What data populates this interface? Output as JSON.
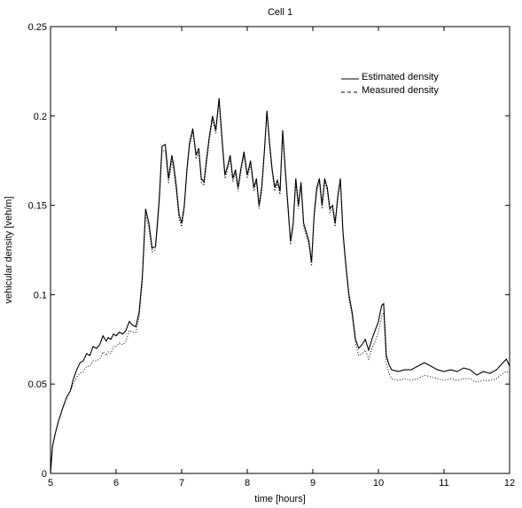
{
  "chart_data": {
    "type": "line",
    "title": "Cell 1",
    "xlabel": "time [hours]",
    "ylabel": "vehicular density [veh/m]",
    "xlim": [
      5,
      12
    ],
    "ylim": [
      0,
      0.25
    ],
    "xticks": [
      "5",
      "6",
      "7",
      "8",
      "9",
      "10",
      "11",
      "12"
    ],
    "yticks": [
      "0",
      "0.05",
      "0.1",
      "0.15",
      "0.2",
      "0.25"
    ],
    "grid": false,
    "legend_position": "top-right",
    "series": [
      {
        "name": "Estimated density",
        "style": "solid",
        "color": "#000000",
        "x": [
          5.0,
          5.03,
          5.07,
          5.12,
          5.18,
          5.25,
          5.3,
          5.35,
          5.4,
          5.45,
          5.5,
          5.55,
          5.6,
          5.65,
          5.7,
          5.75,
          5.8,
          5.85,
          5.88,
          5.92,
          5.96,
          6.0,
          6.05,
          6.1,
          6.15,
          6.2,
          6.25,
          6.3,
          6.35,
          6.4,
          6.45,
          6.5,
          6.55,
          6.6,
          6.63,
          6.66,
          6.7,
          6.75,
          6.8,
          6.85,
          6.88,
          6.92,
          6.96,
          7.0,
          7.04,
          7.08,
          7.12,
          7.17,
          7.22,
          7.26,
          7.3,
          7.34,
          7.38,
          7.42,
          7.47,
          7.52,
          7.57,
          7.62,
          7.66,
          7.7,
          7.74,
          7.78,
          7.82,
          7.86,
          7.9,
          7.95,
          8.0,
          8.05,
          8.1,
          8.14,
          8.18,
          8.22,
          8.26,
          8.3,
          8.34,
          8.38,
          8.42,
          8.46,
          8.5,
          8.54,
          8.58,
          8.62,
          8.66,
          8.7,
          8.74,
          8.78,
          8.82,
          8.86,
          8.9,
          8.94,
          8.98,
          9.02,
          9.06,
          9.1,
          9.14,
          9.18,
          9.22,
          9.26,
          9.3,
          9.34,
          9.38,
          9.42,
          9.46,
          9.5,
          9.55,
          9.6,
          9.65,
          9.7,
          9.75,
          9.8,
          9.85,
          9.9,
          9.95,
          10.0,
          10.05,
          10.08,
          10.12,
          10.16,
          10.2,
          10.3,
          10.4,
          10.5,
          10.6,
          10.7,
          10.8,
          10.9,
          11.0,
          11.1,
          11.2,
          11.3,
          11.4,
          11.5,
          11.6,
          11.7,
          11.8,
          11.9,
          11.95,
          12.0
        ],
        "values": [
          0.0,
          0.015,
          0.022,
          0.029,
          0.036,
          0.043,
          0.046,
          0.053,
          0.058,
          0.062,
          0.063,
          0.067,
          0.066,
          0.071,
          0.07,
          0.072,
          0.077,
          0.074,
          0.076,
          0.075,
          0.078,
          0.077,
          0.079,
          0.078,
          0.08,
          0.085,
          0.083,
          0.082,
          0.09,
          0.11,
          0.148,
          0.14,
          0.126,
          0.127,
          0.14,
          0.155,
          0.183,
          0.184,
          0.165,
          0.178,
          0.172,
          0.16,
          0.145,
          0.14,
          0.15,
          0.17,
          0.185,
          0.193,
          0.178,
          0.182,
          0.165,
          0.163,
          0.176,
          0.188,
          0.2,
          0.192,
          0.21,
          0.185,
          0.167,
          0.172,
          0.178,
          0.165,
          0.17,
          0.16,
          0.17,
          0.18,
          0.167,
          0.175,
          0.16,
          0.165,
          0.15,
          0.16,
          0.18,
          0.203,
          0.185,
          0.17,
          0.16,
          0.164,
          0.158,
          0.192,
          0.17,
          0.15,
          0.13,
          0.14,
          0.165,
          0.15,
          0.163,
          0.14,
          0.135,
          0.13,
          0.118,
          0.145,
          0.16,
          0.165,
          0.15,
          0.165,
          0.16,
          0.148,
          0.15,
          0.14,
          0.155,
          0.165,
          0.135,
          0.118,
          0.1,
          0.09,
          0.075,
          0.07,
          0.072,
          0.075,
          0.069,
          0.075,
          0.08,
          0.085,
          0.094,
          0.095,
          0.066,
          0.061,
          0.058,
          0.057,
          0.058,
          0.058,
          0.06,
          0.062,
          0.06,
          0.058,
          0.057,
          0.058,
          0.057,
          0.059,
          0.058,
          0.055,
          0.057,
          0.056,
          0.058,
          0.062,
          0.064,
          0.06
        ]
      },
      {
        "name": "Measured density",
        "style": "dotted",
        "color": "#000000",
        "x": [
          5.0,
          5.03,
          5.07,
          5.12,
          5.18,
          5.25,
          5.3,
          5.35,
          5.4,
          5.45,
          5.5,
          5.55,
          5.6,
          5.65,
          5.7,
          5.75,
          5.8,
          5.85,
          5.88,
          5.92,
          5.96,
          6.0,
          6.05,
          6.1,
          6.15,
          6.2,
          6.25,
          6.3,
          6.35,
          6.4,
          6.45,
          6.5,
          6.55,
          6.6,
          6.63,
          6.66,
          6.7,
          6.75,
          6.8,
          6.85,
          6.88,
          6.92,
          6.96,
          7.0,
          7.04,
          7.08,
          7.12,
          7.17,
          7.22,
          7.26,
          7.3,
          7.34,
          7.38,
          7.42,
          7.47,
          7.52,
          7.57,
          7.62,
          7.66,
          7.7,
          7.74,
          7.78,
          7.82,
          7.86,
          7.9,
          7.95,
          8.0,
          8.05,
          8.1,
          8.14,
          8.18,
          8.22,
          8.26,
          8.3,
          8.34,
          8.38,
          8.42,
          8.46,
          8.5,
          8.54,
          8.58,
          8.62,
          8.66,
          8.7,
          8.74,
          8.78,
          8.82,
          8.86,
          8.9,
          8.94,
          8.98,
          9.02,
          9.06,
          9.1,
          9.14,
          9.18,
          9.22,
          9.26,
          9.3,
          9.34,
          9.38,
          9.42,
          9.46,
          9.5,
          9.55,
          9.6,
          9.65,
          9.7,
          9.75,
          9.8,
          9.85,
          9.9,
          9.95,
          10.0,
          10.05,
          10.08,
          10.12,
          10.16,
          10.2,
          10.3,
          10.4,
          10.5,
          10.6,
          10.7,
          10.8,
          10.9,
          11.0,
          11.1,
          11.2,
          11.3,
          11.4,
          11.5,
          11.6,
          11.7,
          11.8,
          11.9,
          11.95,
          12.0
        ],
        "values": [
          0.0,
          0.015,
          0.022,
          0.029,
          0.036,
          0.043,
          0.046,
          0.05,
          0.054,
          0.056,
          0.057,
          0.06,
          0.06,
          0.063,
          0.063,
          0.064,
          0.068,
          0.066,
          0.068,
          0.067,
          0.071,
          0.071,
          0.073,
          0.072,
          0.074,
          0.08,
          0.079,
          0.079,
          0.087,
          0.107,
          0.145,
          0.137,
          0.124,
          0.125,
          0.137,
          0.152,
          0.18,
          0.181,
          0.162,
          0.175,
          0.169,
          0.157,
          0.142,
          0.138,
          0.148,
          0.168,
          0.183,
          0.191,
          0.176,
          0.18,
          0.163,
          0.161,
          0.174,
          0.186,
          0.198,
          0.19,
          0.208,
          0.183,
          0.165,
          0.17,
          0.176,
          0.163,
          0.168,
          0.158,
          0.168,
          0.178,
          0.165,
          0.173,
          0.158,
          0.163,
          0.148,
          0.158,
          0.178,
          0.201,
          0.183,
          0.168,
          0.158,
          0.162,
          0.156,
          0.19,
          0.168,
          0.148,
          0.128,
          0.138,
          0.163,
          0.148,
          0.161,
          0.138,
          0.133,
          0.128,
          0.116,
          0.143,
          0.158,
          0.163,
          0.148,
          0.163,
          0.158,
          0.146,
          0.148,
          0.138,
          0.153,
          0.163,
          0.133,
          0.116,
          0.098,
          0.088,
          0.073,
          0.066,
          0.067,
          0.069,
          0.064,
          0.07,
          0.074,
          0.079,
          0.088,
          0.09,
          0.062,
          0.056,
          0.053,
          0.052,
          0.053,
          0.052,
          0.053,
          0.055,
          0.054,
          0.053,
          0.052,
          0.053,
          0.052,
          0.053,
          0.053,
          0.051,
          0.052,
          0.052,
          0.053,
          0.056,
          0.057,
          0.056
        ]
      }
    ]
  }
}
